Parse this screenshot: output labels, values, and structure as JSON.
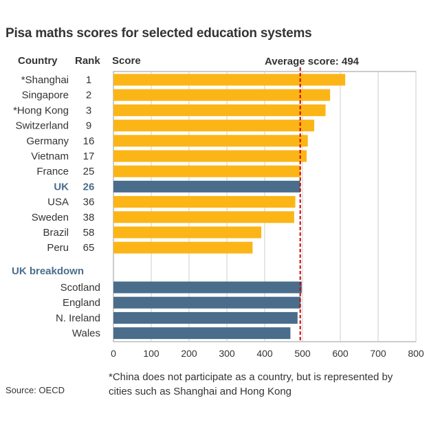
{
  "title": "Pisa maths scores for selected education systems",
  "headers": {
    "country": "Country",
    "rank": "Rank",
    "score": "Score"
  },
  "average_label": "Average score: 494",
  "breakdown_label": "UK breakdown",
  "footnote": "*China does not participate as a country, but is represented by cities such as Shanghai and Hong Kong",
  "source": "Source: OECD",
  "colors": {
    "bar": "#fbb516",
    "highlight": "#4a6d8c",
    "average_line": "#cc0000",
    "grid": "#cccccc"
  },
  "chart_data": {
    "type": "bar",
    "orientation": "horizontal",
    "title": "Pisa maths scores for selected education systems",
    "xlabel": "Score",
    "xlim": [
      0,
      800
    ],
    "xticks": [
      0,
      100,
      200,
      300,
      400,
      500,
      600,
      700,
      800
    ],
    "grid": true,
    "average": 494,
    "countries": [
      {
        "name": "*Shanghai",
        "rank": "1",
        "score": 613,
        "highlight": false
      },
      {
        "name": "Singapore",
        "rank": "2",
        "score": 573,
        "highlight": false
      },
      {
        "name": "*Hong Kong",
        "rank": "3",
        "score": 561,
        "highlight": false
      },
      {
        "name": "Switzerland",
        "rank": "9",
        "score": 531,
        "highlight": false
      },
      {
        "name": "Germany",
        "rank": "16",
        "score": 514,
        "highlight": false
      },
      {
        "name": "Vietnam",
        "rank": "17",
        "score": 511,
        "highlight": false
      },
      {
        "name": "France",
        "rank": "25",
        "score": 495,
        "highlight": false
      },
      {
        "name": "UK",
        "rank": "26",
        "score": 494,
        "highlight": true
      },
      {
        "name": "USA",
        "rank": "36",
        "score": 481,
        "highlight": false
      },
      {
        "name": "Sweden",
        "rank": "38",
        "score": 478,
        "highlight": false
      },
      {
        "name": "Brazil",
        "rank": "58",
        "score": 391,
        "highlight": false
      },
      {
        "name": "Peru",
        "rank": "65",
        "score": 368,
        "highlight": false
      }
    ],
    "uk_breakdown": [
      {
        "name": "Scotland",
        "score": 498
      },
      {
        "name": "England",
        "score": 495
      },
      {
        "name": "N. Ireland",
        "score": 487
      },
      {
        "name": "Wales",
        "score": 468
      }
    ]
  }
}
